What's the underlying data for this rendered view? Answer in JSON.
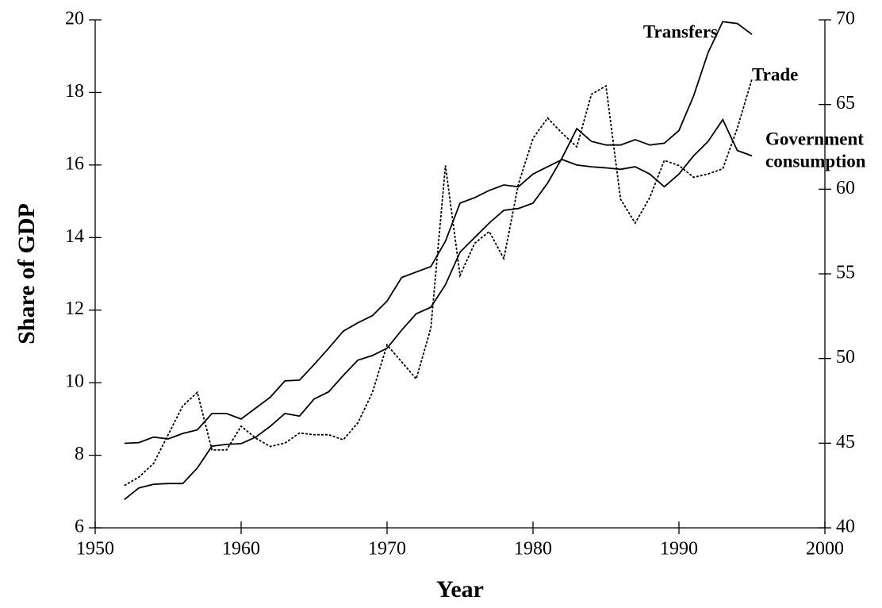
{
  "chart_data": {
    "type": "line",
    "xlabel": "Year",
    "ylabel": "Share of GDP",
    "x": [
      1952,
      1953,
      1954,
      1955,
      1956,
      1957,
      1958,
      1959,
      1960,
      1961,
      1962,
      1963,
      1964,
      1965,
      1966,
      1967,
      1968,
      1969,
      1970,
      1971,
      1972,
      1973,
      1974,
      1975,
      1976,
      1977,
      1978,
      1979,
      1980,
      1981,
      1982,
      1983,
      1984,
      1985,
      1986,
      1987,
      1988,
      1989,
      1990,
      1991,
      1992,
      1993,
      1994,
      1995
    ],
    "series": [
      {
        "name": "Transfers",
        "color": "#000000",
        "axis": "y",
        "values": [
          6.78,
          7.1,
          7.2,
          7.22,
          7.22,
          7.65,
          8.25,
          8.3,
          8.32,
          8.5,
          8.8,
          9.15,
          9.08,
          9.55,
          9.75,
          10.2,
          10.62,
          10.75,
          10.95,
          11.45,
          11.9,
          12.08,
          12.7,
          13.6,
          14.0,
          14.4,
          14.75,
          14.8,
          14.95,
          15.5,
          16.2,
          17.0,
          16.65,
          16.55,
          16.55,
          16.7,
          16.55,
          16.6,
          16.95,
          17.9,
          19.1,
          19.95,
          19.9,
          19.6
        ]
      },
      {
        "name": "Trade",
        "color": "#000000",
        "axis": "y2",
        "dash": "dotted",
        "values": [
          42.5,
          43.0,
          43.8,
          45.5,
          47.2,
          48.0,
          44.6,
          44.6,
          46.0,
          45.3,
          44.8,
          45.0,
          45.6,
          45.5,
          45.5,
          45.2,
          46.2,
          48.0,
          50.8,
          49.8,
          48.8,
          51.8,
          61.4,
          54.9,
          56.8,
          57.5,
          55.9,
          60.3,
          63.0,
          64.2,
          63.3,
          62.5,
          65.6,
          66.1,
          59.4,
          58.0,
          59.5,
          61.7,
          61.4,
          60.7,
          60.9,
          61.2,
          63.6,
          66.5
        ]
      },
      {
        "name": [
          "Government",
          "consumption"
        ],
        "color": "#000000",
        "axis": "y",
        "values": [
          8.33,
          8.35,
          8.5,
          8.45,
          8.6,
          8.7,
          9.15,
          9.15,
          9.0,
          9.3,
          9.6,
          10.05,
          10.07,
          10.5,
          10.95,
          11.42,
          11.65,
          11.85,
          12.25,
          12.9,
          13.05,
          13.2,
          13.9,
          14.95,
          15.1,
          15.3,
          15.45,
          15.4,
          15.75,
          15.95,
          16.15,
          16.0,
          15.95,
          15.92,
          15.88,
          15.95,
          15.75,
          15.4,
          15.75,
          16.25,
          16.65,
          17.25,
          16.4,
          16.25
        ]
      }
    ],
    "xlim": [
      1950,
      2000
    ],
    "xticks": [
      1950,
      1960,
      1970,
      1980,
      1990,
      2000
    ],
    "ylim": [
      6,
      20
    ],
    "yticks": [
      6,
      8,
      10,
      12,
      14,
      16,
      18,
      20
    ],
    "y2lim": [
      40,
      70
    ],
    "y2ticks": [
      40,
      45,
      50,
      55,
      60,
      65,
      70
    ]
  }
}
